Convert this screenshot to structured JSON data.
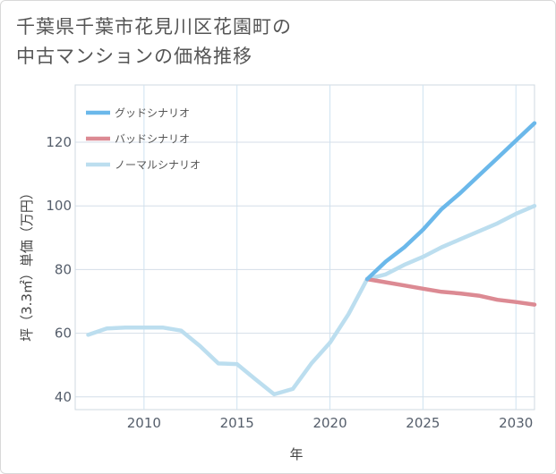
{
  "chart_data": {
    "type": "line",
    "title_lines": [
      "千葉県千葉市花見川区花園町の",
      "中古マンションの価格推移"
    ],
    "xlabel": "年",
    "ylabel": "坪（3.3㎡）単価（万円）",
    "xlim": [
      2006.3,
      2031
    ],
    "ylim": [
      36,
      138
    ],
    "x_ticks": [
      2010,
      2015,
      2020,
      2025,
      2030
    ],
    "y_ticks": [
      40,
      60,
      80,
      100,
      120
    ],
    "grid": true,
    "legend_position": "top-left",
    "series": [
      {
        "name": "グッドシナリオ",
        "color": "#6bb8ea",
        "x": [
          2022,
          2023,
          2024,
          2025,
          2026,
          2027,
          2028,
          2029,
          2030,
          2031
        ],
        "y": [
          77,
          82.5,
          87,
          92.5,
          99,
          104,
          109.5,
          115,
          120.5,
          126
        ]
      },
      {
        "name": "バッドシナリオ",
        "color": "#dc8a93",
        "x": [
          2022,
          2023,
          2024,
          2025,
          2026,
          2027,
          2028,
          2029,
          2030,
          2031
        ],
        "y": [
          77,
          76,
          75,
          74,
          73,
          72.5,
          71.8,
          70.5,
          69.8,
          69
        ]
      },
      {
        "name": "ノーマルシナリオ",
        "color": "#bcdeef",
        "x": [
          2007,
          2008,
          2009,
          2010,
          2011,
          2012,
          2013,
          2014,
          2015,
          2016,
          2017,
          2018,
          2019,
          2020,
          2021,
          2022,
          2023,
          2024,
          2025,
          2026,
          2027,
          2028,
          2029,
          2030,
          2031
        ],
        "y": [
          59.5,
          61.5,
          61.8,
          61.8,
          61.8,
          60.8,
          56,
          50.5,
          50.3,
          45.5,
          40.8,
          42.5,
          50.5,
          57,
          66,
          77,
          78.5,
          81.5,
          84,
          87,
          89.5,
          92,
          94.5,
          97.5,
          100
        ]
      }
    ]
  }
}
